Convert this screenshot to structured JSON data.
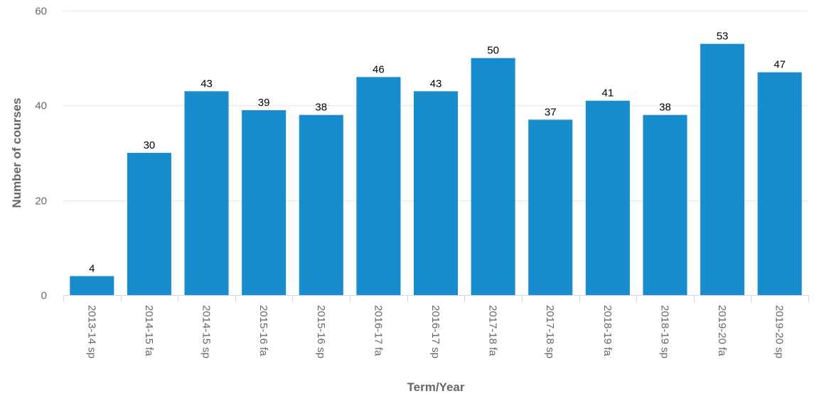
{
  "chart_data": {
    "type": "bar",
    "title": "",
    "xlabel": "Term/Year",
    "ylabel": "Number of courses",
    "categories": [
      "2013-14 sp",
      "2014-15 fa",
      "2014-15 sp",
      "2015-16 fa",
      "2015-16 sp",
      "2016-17 fa",
      "2016-17 sp",
      "2017-18 fa",
      "2017-18 sp",
      "2018-19 fa",
      "2018-19 sp",
      "2019-20 fa",
      "2019-20 sp"
    ],
    "values": [
      4,
      30,
      43,
      39,
      38,
      46,
      43,
      50,
      37,
      41,
      38,
      53,
      47
    ],
    "ylim": [
      0,
      60
    ],
    "yticks": [
      0,
      20,
      40,
      60
    ],
    "grid": true,
    "legend": "none",
    "colors": {
      "bar": "#188ccc",
      "grid": "#e6e6e6",
      "axis": "#ccd6eb"
    }
  }
}
